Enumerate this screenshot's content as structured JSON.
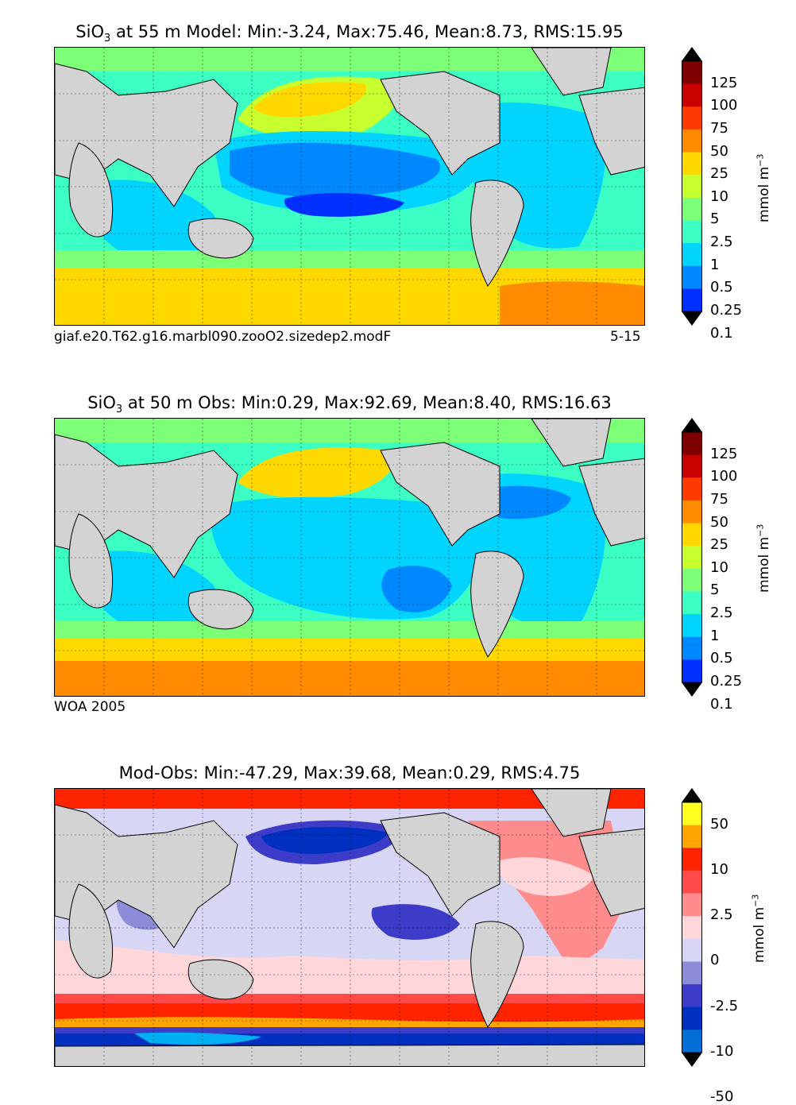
{
  "panels": [
    {
      "title_main": "SiO",
      "title_sub": "3",
      "title_rest": " at 55 m Model: Min:-3.24, Max:75.46, Mean:8.73, RMS:15.95",
      "caption_left": "giaf.e20.T62.g16.marbl090.zooO2.sizedep2.modF",
      "caption_right": "5-15",
      "colorbar": {
        "labels": [
          "125",
          "100",
          "75",
          "50",
          "25",
          "10",
          "5",
          "2.5",
          "1",
          "0.5",
          "0.25",
          "0.1"
        ],
        "colors": [
          "#7f0000",
          "#c80000",
          "#ff3a00",
          "#ff8c00",
          "#ffd800",
          "#c8ff2e",
          "#7eff78",
          "#3cffc4",
          "#00d4ff",
          "#0088ff",
          "#0030ff",
          "#0000d6",
          "#00007f"
        ],
        "unit": "mmol m",
        "unit_sup": "−3"
      }
    },
    {
      "title_main": "SiO",
      "title_sub": "3",
      "title_rest": " at 50 m Obs: Min:0.29, Max:92.69, Mean:8.40, RMS:16.63",
      "caption_left": "WOA 2005",
      "colorbar": {
        "labels": [
          "125",
          "100",
          "75",
          "50",
          "25",
          "10",
          "5",
          "2.5",
          "1",
          "0.5",
          "0.25",
          "0.1"
        ],
        "colors": [
          "#7f0000",
          "#c80000",
          "#ff3a00",
          "#ff8c00",
          "#ffd800",
          "#c8ff2e",
          "#7eff78",
          "#3cffc4",
          "#00d4ff",
          "#0088ff",
          "#0030ff",
          "#0000d6",
          "#00007f"
        ],
        "unit": "mmol m",
        "unit_sup": "−3"
      }
    },
    {
      "title_full": "Mod-Obs: Min:-47.29, Max:39.68, Mean:0.29, RMS:4.75",
      "colorbar": {
        "labels": [
          "50",
          "10",
          "2.5",
          "0",
          "-2.5",
          "-10",
          "-50"
        ],
        "colors": [
          "#ffff20",
          "#ffa500",
          "#ff2400",
          "#ff4a4a",
          "#ff8c8c",
          "#ffd6da",
          "#d7d7f5",
          "#8c8cd8",
          "#3c3cc8",
          "#0030c0",
          "#0070d8",
          "#00b0f0",
          "#20ffff"
        ],
        "unit": "mmol m",
        "unit_sup": "−3"
      }
    }
  ]
}
